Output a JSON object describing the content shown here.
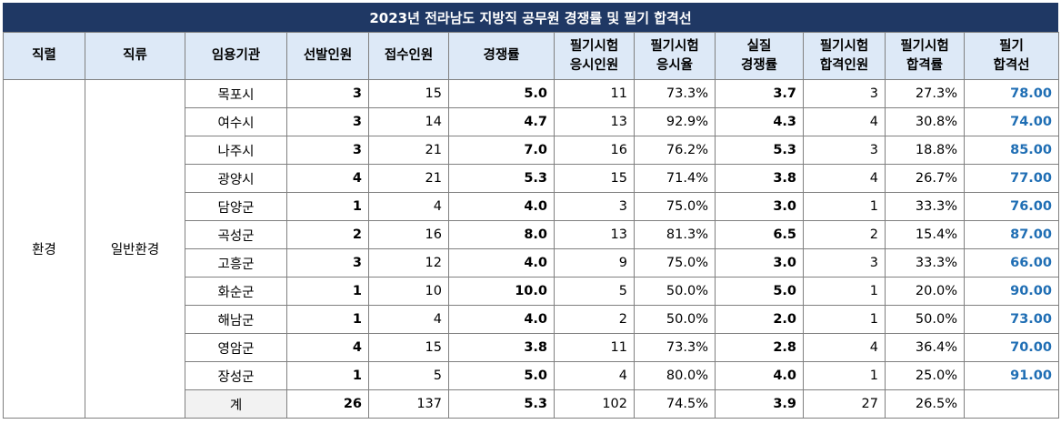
{
  "title": "2023년 전라남도 지방직 공무원 경쟁률 및 필기 합격선",
  "headers": [
    [
      "직렬"
    ],
    [
      "직류"
    ],
    [
      "임용기관"
    ],
    [
      "선발인원"
    ],
    [
      "접수인원"
    ],
    [
      "경쟁률"
    ],
    [
      "필기시험",
      "응시인원"
    ],
    [
      "필기시험",
      "응시율"
    ],
    [
      "실질",
      "경쟁률"
    ],
    [
      "필기시험",
      "합격인원"
    ],
    [
      "필기시험",
      "합격률"
    ],
    [
      "필기",
      "합격선"
    ]
  ],
  "group": {
    "series": "환경",
    "branch": "일반환경"
  },
  "rows": [
    {
      "org": "목포시",
      "selected": "3",
      "applied": "15",
      "ratio": "5.0",
      "takers": "11",
      "take_rate": "73.3%",
      "real_ratio": "3.7",
      "passed": "3",
      "pass_rate": "27.3%",
      "cutoff": "78.00"
    },
    {
      "org": "여수시",
      "selected": "3",
      "applied": "14",
      "ratio": "4.7",
      "takers": "13",
      "take_rate": "92.9%",
      "real_ratio": "4.3",
      "passed": "4",
      "pass_rate": "30.8%",
      "cutoff": "74.00"
    },
    {
      "org": "나주시",
      "selected": "3",
      "applied": "21",
      "ratio": "7.0",
      "takers": "16",
      "take_rate": "76.2%",
      "real_ratio": "5.3",
      "passed": "3",
      "pass_rate": "18.8%",
      "cutoff": "85.00"
    },
    {
      "org": "광양시",
      "selected": "4",
      "applied": "21",
      "ratio": "5.3",
      "takers": "15",
      "take_rate": "71.4%",
      "real_ratio": "3.8",
      "passed": "4",
      "pass_rate": "26.7%",
      "cutoff": "77.00"
    },
    {
      "org": "담양군",
      "selected": "1",
      "applied": "4",
      "ratio": "4.0",
      "takers": "3",
      "take_rate": "75.0%",
      "real_ratio": "3.0",
      "passed": "1",
      "pass_rate": "33.3%",
      "cutoff": "76.00"
    },
    {
      "org": "곡성군",
      "selected": "2",
      "applied": "16",
      "ratio": "8.0",
      "takers": "13",
      "take_rate": "81.3%",
      "real_ratio": "6.5",
      "passed": "2",
      "pass_rate": "15.4%",
      "cutoff": "87.00"
    },
    {
      "org": "고흥군",
      "selected": "3",
      "applied": "12",
      "ratio": "4.0",
      "takers": "9",
      "take_rate": "75.0%",
      "real_ratio": "3.0",
      "passed": "3",
      "pass_rate": "33.3%",
      "cutoff": "66.00"
    },
    {
      "org": "화순군",
      "selected": "1",
      "applied": "10",
      "ratio": "10.0",
      "takers": "5",
      "take_rate": "50.0%",
      "real_ratio": "5.0",
      "passed": "1",
      "pass_rate": "20.0%",
      "cutoff": "90.00"
    },
    {
      "org": "해남군",
      "selected": "1",
      "applied": "4",
      "ratio": "4.0",
      "takers": "2",
      "take_rate": "50.0%",
      "real_ratio": "2.0",
      "passed": "1",
      "pass_rate": "50.0%",
      "cutoff": "73.00"
    },
    {
      "org": "영암군",
      "selected": "4",
      "applied": "15",
      "ratio": "3.8",
      "takers": "11",
      "take_rate": "73.3%",
      "real_ratio": "2.8",
      "passed": "4",
      "pass_rate": "36.4%",
      "cutoff": "70.00"
    },
    {
      "org": "장성군",
      "selected": "1",
      "applied": "5",
      "ratio": "5.0",
      "takers": "4",
      "take_rate": "80.0%",
      "real_ratio": "4.0",
      "passed": "1",
      "pass_rate": "25.0%",
      "cutoff": "91.00"
    }
  ],
  "total": {
    "org": "계",
    "selected": "26",
    "applied": "137",
    "ratio": "5.3",
    "takers": "102",
    "take_rate": "74.5%",
    "real_ratio": "3.9",
    "passed": "27",
    "pass_rate": "26.5%",
    "cutoff": ""
  },
  "colors": {
    "title_bg": "#1f3864",
    "header_bg": "#dde9f7",
    "cutoff_text": "#1f6eb4",
    "total_bg": "#f2f2f2"
  }
}
